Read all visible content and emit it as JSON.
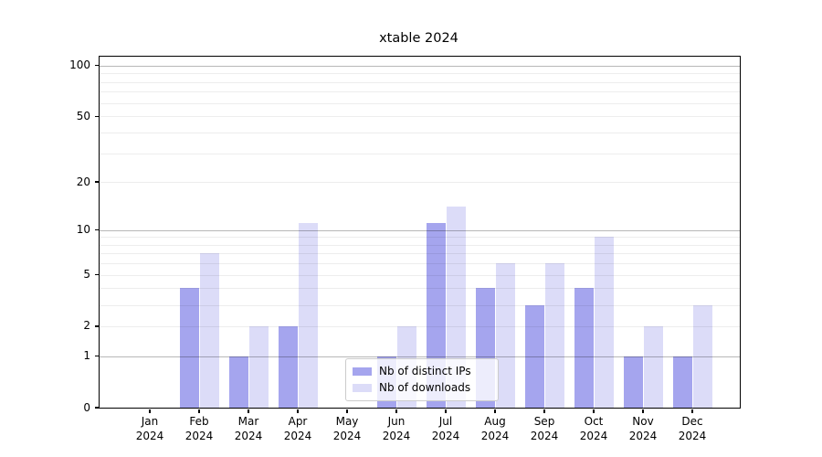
{
  "title": "xtable 2024",
  "chart_data": {
    "type": "bar",
    "title": "xtable 2024",
    "categories": [
      "Jan",
      "Feb",
      "Mar",
      "Apr",
      "May",
      "Jun",
      "Jul",
      "Aug",
      "Sep",
      "Oct",
      "Nov",
      "Dec"
    ],
    "x_tick_second_line": "2024",
    "series": [
      {
        "name": "Nb of distinct IPs",
        "color": "#a5a5ee",
        "values": [
          0,
          4,
          1,
          2,
          0,
          1,
          11,
          4,
          3,
          4,
          1,
          1
        ]
      },
      {
        "name": "Nb of downloads",
        "color": "#dcdcf8",
        "values": [
          0,
          7,
          2,
          11,
          0,
          2,
          14,
          6,
          6,
          9,
          2,
          3
        ]
      }
    ],
    "yscale": "log1p",
    "ylim": [
      0,
      113
    ],
    "yticks": [
      0,
      1,
      2,
      5,
      10,
      20,
      50,
      100
    ],
    "major_gridlines": [
      1,
      10,
      100
    ],
    "minor_gridlines": [
      2,
      3,
      4,
      5,
      6,
      7,
      8,
      9,
      20,
      30,
      40,
      50,
      60,
      70,
      80,
      90
    ],
    "grid": true,
    "legend_position": "lower center"
  }
}
